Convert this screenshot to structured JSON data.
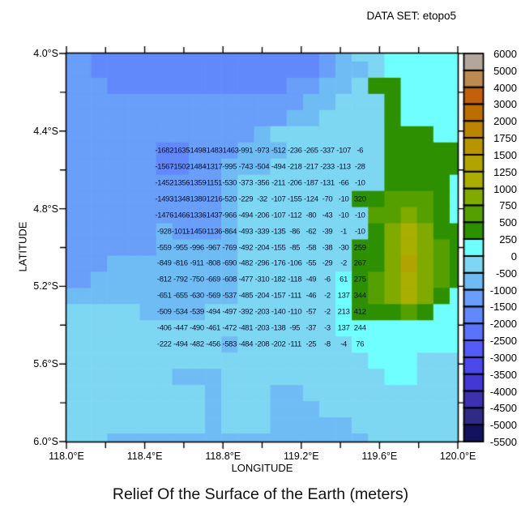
{
  "header": {
    "dataset_label": "DATA SET: etopo5"
  },
  "title": "Relief Of the Surface of the Earth (meters)",
  "axes": {
    "x_title": "LONGITUDE",
    "y_title": "LATITUDE",
    "x_tick_labels": [
      "118.0°E",
      "118.4°E",
      "118.8°E",
      "119.2°E",
      "119.6°E",
      "120.0°E"
    ],
    "y_tick_labels": [
      "4.0°S",
      "4.4°S",
      "4.8°S",
      "5.2°S",
      "5.6°S",
      "6.0°S"
    ]
  },
  "chart_data": {
    "type": "heatmap",
    "title": "Relief Of the Surface of the Earth (meters)",
    "dataset": "etopo5",
    "units": "meters",
    "x_axis_label": "LONGITUDE",
    "y_axis_label": "LATITUDE",
    "x_range": [
      "118.0°E",
      "120.0°E"
    ],
    "y_range": [
      "4.0°S",
      "6.0°S"
    ],
    "grid_resolution_deg": 0.08333,
    "colorbar": {
      "position": "right",
      "tick_labels": [
        "6000",
        "5000",
        "4000",
        "3000",
        "2000",
        "1750",
        "1500",
        "1250",
        "1000",
        "750",
        "500",
        "250",
        "0",
        "-500",
        "-1000",
        "-1500",
        "-2000",
        "-2500",
        "-3000",
        "-3500",
        "-4000",
        "-4500",
        "-5000",
        "-5500"
      ],
      "band_colors": [
        "#b3a79c",
        "#bd8a52",
        "#c2600d",
        "#bc6f00",
        "#bc8400",
        "#b79500",
        "#b2a400",
        "#a9ae00",
        "#80aa00",
        "#55a000",
        "#2d9000",
        "#70ffff",
        "#7dd7f2",
        "#6fbcf4",
        "#699ef9",
        "#6289fb",
        "#5b73fa",
        "#555cf5",
        "#4b49e9",
        "#4438d4",
        "#3c32ad",
        "#2f2b84",
        "#13125f"
      ]
    },
    "cell_values": {
      "first_row_lat": "4.5°S",
      "first_col_lon": "118.5°E",
      "origin_row": 6,
      "origin_col": 6,
      "matrix": [
        [
          -1682,
          -1635,
          -1498,
          -1483,
          -1463,
          -991,
          -973,
          -512,
          -236,
          -265,
          -337,
          -107,
          -6
        ],
        [
          -1567,
          -1502,
          -1484,
          -1317,
          -995,
          -743,
          -504,
          -494,
          -218,
          -217,
          -233,
          -113,
          -28
        ],
        [
          -1452,
          -1356,
          -1359,
          -1151,
          -530,
          -373,
          -356,
          -211,
          -206,
          -187,
          -131,
          -66,
          -10
        ],
        [
          -1493,
          -1348,
          -1380,
          -1216,
          -520,
          -229,
          -32,
          -107,
          -155,
          -124,
          -70,
          -10,
          320
        ],
        [
          -1476,
          -1466,
          -1336,
          -1437,
          -966,
          -494,
          -206,
          -107,
          -112,
          -80,
          -43,
          -10,
          -10
        ],
        [
          -928,
          -1011,
          -1450,
          -1136,
          -864,
          -493,
          -339,
          -135,
          -86,
          -62,
          -39,
          -1,
          -10
        ],
        [
          -559,
          -955,
          -996,
          -967,
          -769,
          -492,
          -204,
          -155,
          -85,
          -58,
          -38,
          -30,
          259
        ],
        [
          -849,
          -816,
          -911,
          -808,
          -690,
          -482,
          -296,
          -176,
          -106,
          -55,
          -29,
          -2,
          267
        ],
        [
          -812,
          -792,
          -750,
          -669,
          -608,
          -477,
          -310,
          -182,
          -118,
          -49,
          -6,
          61,
          275
        ],
        [
          -651,
          -655,
          -630,
          -569,
          -537,
          -485,
          -204,
          -157,
          -111,
          -46,
          -2,
          137,
          344
        ],
        [
          -509,
          -534,
          -539,
          -494,
          -497,
          -392,
          -203,
          -140,
          -110,
          -57,
          -2,
          213,
          412
        ],
        [
          -406,
          -447,
          -490,
          -461,
          -472,
          -481,
          -203,
          -138,
          -95,
          -37,
          -3,
          137,
          244
        ],
        [
          -222,
          -494,
          -482,
          -456,
          -583,
          -484,
          -208,
          -202,
          -111,
          -25,
          -8,
          -4,
          76
        ]
      ]
    },
    "band_grid": [
      [
        14,
        14,
        15,
        15,
        15,
        15,
        15,
        15,
        15,
        15,
        15,
        15,
        15,
        15,
        15,
        15,
        14,
        13,
        12,
        12,
        11,
        11,
        11,
        11,
        11
      ],
      [
        14,
        14,
        15,
        15,
        15,
        15,
        15,
        15,
        15,
        15,
        15,
        15,
        15,
        15,
        15,
        15,
        14,
        13,
        13,
        12,
        11,
        11,
        11,
        11,
        11
      ],
      [
        14,
        14,
        14,
        15,
        15,
        15,
        15,
        15,
        15,
        15,
        15,
        15,
        15,
        15,
        14,
        14,
        13,
        13,
        12,
        10,
        10,
        11,
        11,
        11,
        11
      ],
      [
        14,
        14,
        14,
        14,
        14,
        14,
        14,
        14,
        14,
        14,
        14,
        14,
        14,
        14,
        14,
        13,
        13,
        12,
        12,
        12,
        10,
        11,
        11,
        11,
        11
      ],
      [
        14,
        14,
        14,
        14,
        14,
        14,
        14,
        14,
        14,
        14,
        14,
        14,
        14,
        14,
        13,
        13,
        12,
        12,
        12,
        12,
        10,
        11,
        11,
        11,
        11
      ],
      [
        14,
        14,
        14,
        14,
        14,
        14,
        14,
        14,
        14,
        14,
        14,
        14,
        13,
        12,
        12,
        12,
        12,
        12,
        12,
        12,
        10,
        10,
        10,
        11,
        11
      ],
      [
        14,
        14,
        14,
        14,
        14,
        14,
        15,
        15,
        14,
        14,
        14,
        13,
        13,
        13,
        12,
        12,
        12,
        12,
        12,
        12,
        10,
        10,
        10,
        10,
        10
      ],
      [
        14,
        14,
        14,
        14,
        14,
        14,
        15,
        15,
        14,
        14,
        13,
        13,
        13,
        12,
        12,
        12,
        12,
        12,
        12,
        12,
        10,
        10,
        10,
        10,
        10
      ],
      [
        14,
        14,
        14,
        14,
        14,
        14,
        14,
        14,
        14,
        14,
        13,
        12,
        12,
        12,
        12,
        12,
        12,
        12,
        12,
        12,
        10,
        10,
        10,
        10,
        11
      ],
      [
        14,
        14,
        14,
        14,
        14,
        14,
        14,
        14,
        14,
        14,
        13,
        12,
        12,
        12,
        12,
        12,
        12,
        12,
        10,
        10,
        9,
        9,
        9,
        10,
        11
      ],
      [
        14,
        14,
        14,
        14,
        14,
        14,
        14,
        14,
        14,
        14,
        13,
        12,
        12,
        12,
        12,
        12,
        12,
        12,
        12,
        9,
        9,
        8,
        9,
        10,
        11
      ],
      [
        14,
        14,
        14,
        14,
        14,
        14,
        13,
        14,
        14,
        14,
        13,
        12,
        12,
        12,
        12,
        12,
        12,
        12,
        12,
        10,
        8,
        7,
        8,
        10,
        10
      ],
      [
        14,
        14,
        14,
        14,
        14,
        14,
        13,
        13,
        13,
        13,
        13,
        12,
        12,
        12,
        12,
        12,
        12,
        12,
        10,
        10,
        8,
        7,
        8,
        9,
        10
      ],
      [
        14,
        14,
        14,
        13,
        13,
        13,
        13,
        13,
        13,
        13,
        13,
        12,
        12,
        12,
        12,
        12,
        12,
        12,
        10,
        10,
        8,
        6,
        8,
        9,
        10
      ],
      [
        14,
        14,
        13,
        13,
        13,
        13,
        13,
        13,
        13,
        13,
        13,
        12,
        12,
        12,
        12,
        12,
        12,
        11,
        10,
        9,
        8,
        7,
        8,
        9,
        10
      ],
      [
        13,
        13,
        13,
        13,
        13,
        13,
        13,
        13,
        13,
        13,
        13,
        12,
        12,
        12,
        12,
        12,
        12,
        11,
        10,
        9,
        8,
        7,
        8,
        10,
        11
      ],
      [
        12,
        12,
        12,
        12,
        12,
        13,
        13,
        13,
        13,
        12,
        12,
        12,
        12,
        12,
        12,
        12,
        12,
        11,
        10,
        10,
        10,
        9,
        10,
        11,
        11
      ],
      [
        12,
        12,
        12,
        12,
        12,
        12,
        12,
        12,
        12,
        12,
        12,
        12,
        12,
        12,
        12,
        12,
        12,
        11,
        11,
        11,
        11,
        11,
        11,
        11,
        11
      ],
      [
        12,
        12,
        12,
        12,
        12,
        12,
        12,
        12,
        12,
        12,
        13,
        12,
        12,
        12,
        12,
        12,
        12,
        12,
        11,
        11,
        11,
        11,
        11,
        11,
        11
      ],
      [
        12,
        12,
        12,
        12,
        12,
        12,
        12,
        12,
        12,
        12,
        12,
        12,
        12,
        12,
        12,
        12,
        12,
        12,
        12,
        11,
        11,
        11,
        12,
        12,
        12
      ],
      [
        12,
        12,
        12,
        12,
        12,
        12,
        12,
        13,
        13,
        13,
        12,
        12,
        12,
        12,
        12,
        12,
        12,
        12,
        12,
        12,
        11,
        11,
        12,
        12,
        12
      ],
      [
        12,
        12,
        12,
        12,
        12,
        12,
        12,
        12,
        12,
        13,
        12,
        12,
        12,
        13,
        13,
        12,
        12,
        12,
        12,
        12,
        12,
        12,
        12,
        12,
        12
      ],
      [
        12,
        12,
        12,
        12,
        12,
        12,
        12,
        12,
        12,
        13,
        12,
        12,
        12,
        13,
        13,
        13,
        12,
        12,
        12,
        12,
        12,
        12,
        12,
        12,
        12
      ],
      [
        12,
        12,
        12,
        12,
        12,
        12,
        12,
        12,
        12,
        13,
        12,
        12,
        12,
        13,
        13,
        13,
        13,
        13,
        12,
        12,
        12,
        12,
        12,
        12,
        12
      ],
      [
        12,
        12,
        12,
        13,
        13,
        13,
        13,
        13,
        13,
        13,
        13,
        13,
        13,
        13,
        13,
        13,
        13,
        13,
        13,
        12,
        12,
        12,
        12,
        12,
        12
      ]
    ]
  }
}
